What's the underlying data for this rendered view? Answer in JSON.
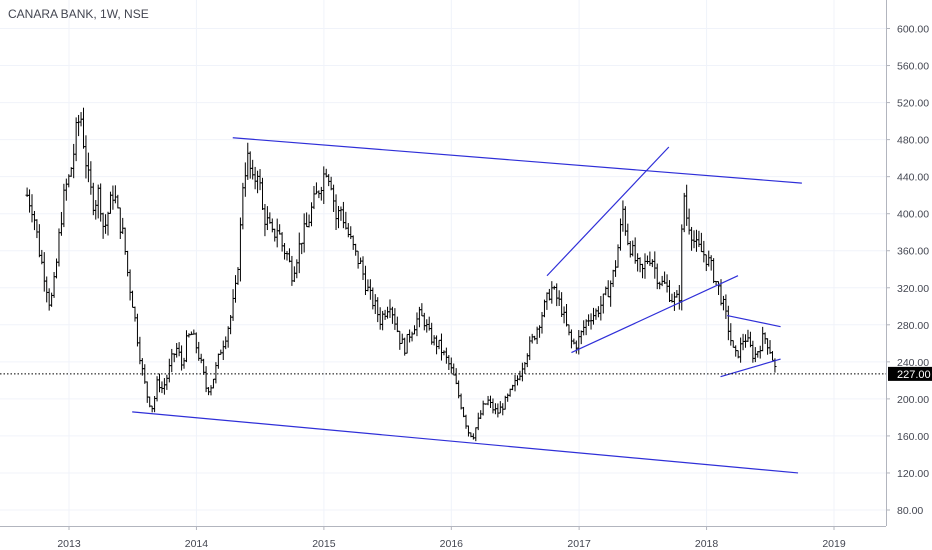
{
  "title": "CANARA BANK, 1W, NSE",
  "chart_data": {
    "type": "ohlc",
    "symbol": "CANARA BANK",
    "interval": "1W",
    "exchange": "NSE",
    "last_price": 227.0,
    "last_price_label": "227.00",
    "ylim": [
      50,
      650
    ],
    "y_ticks": [
      "80.00",
      "120.00",
      "160.00",
      "200.00",
      "240.00",
      "280.00",
      "320.00",
      "360.00",
      "400.00",
      "440.00",
      "480.00",
      "520.00",
      "560.00",
      "600.00"
    ],
    "x_ticks": [
      "2013",
      "2014",
      "2015",
      "2016",
      "2017",
      "2018",
      "2019"
    ],
    "price_path": [
      [
        "2012-09-03",
        420
      ],
      [
        "2012-09-20",
        405
      ],
      [
        "2012-10-10",
        355
      ],
      [
        "2012-10-25",
        330
      ],
      [
        "2012-11-08",
        300
      ],
      [
        "2012-11-22",
        330
      ],
      [
        "2012-12-06",
        385
      ],
      [
        "2012-12-20",
        425
      ],
      [
        "2013-01-03",
        440
      ],
      [
        "2013-01-14",
        465
      ],
      [
        "2013-01-24",
        495
      ],
      [
        "2013-02-04",
        505
      ],
      [
        "2013-02-14",
        470
      ],
      [
        "2013-02-28",
        430
      ],
      [
        "2013-03-14",
        410
      ],
      [
        "2013-03-28",
        425
      ],
      [
        "2013-04-11",
        380
      ],
      [
        "2013-04-25",
        405
      ],
      [
        "2013-05-09",
        425
      ],
      [
        "2013-05-23",
        395
      ],
      [
        "2013-06-06",
        375
      ],
      [
        "2013-06-20",
        330
      ],
      [
        "2013-07-04",
        300
      ],
      [
        "2013-07-18",
        260
      ],
      [
        "2013-08-01",
        225
      ],
      [
        "2013-08-15",
        200
      ],
      [
        "2013-08-29",
        190
      ],
      [
        "2013-09-12",
        220
      ],
      [
        "2013-09-26",
        210
      ],
      [
        "2013-10-10",
        225
      ],
      [
        "2013-10-24",
        245
      ],
      [
        "2013-11-07",
        255
      ],
      [
        "2013-11-21",
        235
      ],
      [
        "2013-12-05",
        265
      ],
      [
        "2013-12-19",
        270
      ],
      [
        "2014-01-02",
        255
      ],
      [
        "2014-01-16",
        235
      ],
      [
        "2014-01-30",
        210
      ],
      [
        "2014-02-13",
        215
      ],
      [
        "2014-02-27",
        235
      ],
      [
        "2014-03-13",
        255
      ],
      [
        "2014-03-27",
        270
      ],
      [
        "2014-04-10",
        290
      ],
      [
        "2014-04-24",
        320
      ],
      [
        "2014-05-05",
        370
      ],
      [
        "2014-05-15",
        440
      ],
      [
        "2014-05-29",
        460
      ],
      [
        "2014-06-12",
        430
      ],
      [
        "2014-06-26",
        450
      ],
      [
        "2014-07-10",
        400
      ],
      [
        "2014-07-24",
        390
      ],
      [
        "2014-08-07",
        375
      ],
      [
        "2014-08-21",
        385
      ],
      [
        "2014-09-04",
        365
      ],
      [
        "2014-09-18",
        355
      ],
      [
        "2014-10-02",
        335
      ],
      [
        "2014-10-16",
        355
      ],
      [
        "2014-10-30",
        375
      ],
      [
        "2014-11-13",
        385
      ],
      [
        "2014-11-27",
        405
      ],
      [
        "2014-12-11",
        420
      ],
      [
        "2014-12-25",
        435
      ],
      [
        "2015-01-08",
        450
      ],
      [
        "2015-01-22",
        435
      ],
      [
        "2015-02-05",
        395
      ],
      [
        "2015-02-19",
        405
      ],
      [
        "2015-03-05",
        385
      ],
      [
        "2015-03-19",
        370
      ],
      [
        "2015-04-02",
        355
      ],
      [
        "2015-04-16",
        345
      ],
      [
        "2015-04-30",
        325
      ],
      [
        "2015-05-14",
        310
      ],
      [
        "2015-05-28",
        300
      ],
      [
        "2015-06-11",
        285
      ],
      [
        "2015-06-25",
        295
      ],
      [
        "2015-07-09",
        305
      ],
      [
        "2015-07-23",
        285
      ],
      [
        "2015-08-06",
        265
      ],
      [
        "2015-08-20",
        255
      ],
      [
        "2015-09-03",
        270
      ],
      [
        "2015-09-17",
        280
      ],
      [
        "2015-10-01",
        290
      ],
      [
        "2015-10-15",
        285
      ],
      [
        "2015-10-29",
        270
      ],
      [
        "2015-11-12",
        262
      ],
      [
        "2015-11-26",
        258
      ],
      [
        "2015-12-10",
        248
      ],
      [
        "2015-12-24",
        238
      ],
      [
        "2016-01-07",
        225
      ],
      [
        "2016-01-21",
        205
      ],
      [
        "2016-02-04",
        185
      ],
      [
        "2016-02-18",
        165
      ],
      [
        "2016-03-03",
        160
      ],
      [
        "2016-03-17",
        175
      ],
      [
        "2016-03-31",
        190
      ],
      [
        "2016-04-14",
        198
      ],
      [
        "2016-04-28",
        190
      ],
      [
        "2016-05-12",
        185
      ],
      [
        "2016-05-26",
        192
      ],
      [
        "2016-06-09",
        200
      ],
      [
        "2016-06-23",
        210
      ],
      [
        "2016-07-07",
        220
      ],
      [
        "2016-07-21",
        235
      ],
      [
        "2016-08-04",
        250
      ],
      [
        "2016-08-18",
        262
      ],
      [
        "2016-09-01",
        275
      ],
      [
        "2016-09-15",
        290
      ],
      [
        "2016-09-29",
        305
      ],
      [
        "2016-10-13",
        320
      ],
      [
        "2016-10-27",
        310
      ],
      [
        "2016-11-10",
        300
      ],
      [
        "2016-11-24",
        280
      ],
      [
        "2016-12-08",
        262
      ],
      [
        "2016-12-22",
        258
      ],
      [
        "2017-01-05",
        268
      ],
      [
        "2017-01-19",
        282
      ],
      [
        "2017-02-02",
        290
      ],
      [
        "2017-02-16",
        292
      ],
      [
        "2017-03-02",
        300
      ],
      [
        "2017-03-16",
        310
      ],
      [
        "2017-03-30",
        322
      ],
      [
        "2017-04-13",
        340
      ],
      [
        "2017-04-27",
        375
      ],
      [
        "2017-05-06",
        405
      ],
      [
        "2017-05-18",
        375
      ],
      [
        "2017-06-01",
        360
      ],
      [
        "2017-06-15",
        345
      ],
      [
        "2017-06-29",
        335
      ],
      [
        "2017-07-13",
        350
      ],
      [
        "2017-07-27",
        355
      ],
      [
        "2017-08-10",
        335
      ],
      [
        "2017-08-24",
        325
      ],
      [
        "2017-09-07",
        322
      ],
      [
        "2017-09-21",
        310
      ],
      [
        "2017-10-05",
        305
      ],
      [
        "2017-10-19",
        315
      ],
      [
        "2017-10-25",
        440
      ],
      [
        "2017-11-02",
        400
      ],
      [
        "2017-11-16",
        385
      ],
      [
        "2017-11-30",
        365
      ],
      [
        "2017-12-14",
        360
      ],
      [
        "2017-12-28",
        355
      ],
      [
        "2018-01-11",
        345
      ],
      [
        "2018-01-25",
        330
      ],
      [
        "2018-02-08",
        315
      ],
      [
        "2018-02-22",
        295
      ],
      [
        "2018-03-08",
        270
      ],
      [
        "2018-03-22",
        245
      ],
      [
        "2018-04-05",
        252
      ],
      [
        "2018-04-19",
        268
      ],
      [
        "2018-05-03",
        258
      ],
      [
        "2018-05-17",
        245
      ],
      [
        "2018-05-31",
        255
      ],
      [
        "2018-06-14",
        268
      ],
      [
        "2018-06-28",
        258
      ],
      [
        "2018-07-12",
        240
      ],
      [
        "2018-07-19",
        227
      ]
    ],
    "trend_lines": [
      {
        "name": "upper-channel",
        "from": [
          "2014-04-15",
          482
        ],
        "to": [
          "2018-10-01",
          433
        ]
      },
      {
        "name": "lower-channel",
        "from": [
          "2013-07-01",
          186
        ],
        "to": [
          "2018-09-20",
          120
        ]
      },
      {
        "name": "rising-wedge-upper",
        "from": [
          "2016-10-01",
          333
        ],
        "to": [
          "2017-09-15",
          472
        ]
      },
      {
        "name": "rising-wedge-lower",
        "from": [
          "2016-12-10",
          250
        ],
        "to": [
          "2018-04-01",
          333
        ]
      },
      {
        "name": "triangle-upper",
        "from": [
          "2018-03-01",
          290
        ],
        "to": [
          "2018-08-01",
          278
        ]
      },
      {
        "name": "triangle-lower",
        "from": [
          "2018-02-10",
          224
        ],
        "to": [
          "2018-08-01",
          243
        ]
      }
    ],
    "colors": {
      "bars": "#000000",
      "trend_lines": "#2f2fd8",
      "price_line": "#000000",
      "price_tag": "#000000"
    }
  }
}
